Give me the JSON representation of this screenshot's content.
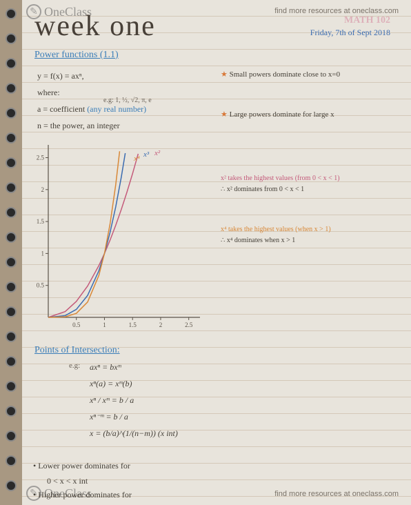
{
  "watermark": {
    "brand": "OneClass",
    "icon_glyph": "✎"
  },
  "resources_text": "find more resources at oneclass.com",
  "header": {
    "course": "MATH 102",
    "date": "Friday, 7th of Sept 2018"
  },
  "title": "week one",
  "section1": {
    "heading": "Power functions  (1.1)"
  },
  "definitions": {
    "formula": "y = f(x) = axⁿ,",
    "where": "where:",
    "coef_lhs": "a = coefficient ",
    "coef_paren": "(any real number)",
    "pow_line": "n = the power, an integer",
    "eg": "e.g: 1, ½, √2, π, e"
  },
  "notes": {
    "n1": "Small powers dominate close to x=0",
    "n2": "Large powers dominate for large x"
  },
  "chart": {
    "type": "line",
    "xlim": [
      0,
      2.7
    ],
    "ylim": [
      0,
      2.7
    ],
    "xticks": [
      0.5,
      1,
      1.5,
      2,
      2.5
    ],
    "yticks": [
      0.5,
      1,
      1.5,
      2,
      2.5
    ],
    "axis_color": "#5a5248",
    "tick_fontsize": 9,
    "series": [
      {
        "name": "x2",
        "label": "x²",
        "color": "#c45a7a",
        "width": 1.5,
        "points": [
          [
            0,
            0
          ],
          [
            0.3,
            0.09
          ],
          [
            0.5,
            0.25
          ],
          [
            0.7,
            0.49
          ],
          [
            0.9,
            0.81
          ],
          [
            1,
            1
          ],
          [
            1.1,
            1.21
          ],
          [
            1.2,
            1.44
          ],
          [
            1.3,
            1.69
          ],
          [
            1.4,
            1.96
          ],
          [
            1.5,
            2.25
          ],
          [
            1.6,
            2.56
          ]
        ]
      },
      {
        "name": "x3",
        "label": "x³",
        "color": "#3a6bb0",
        "width": 1.5,
        "points": [
          [
            0,
            0
          ],
          [
            0.3,
            0.027
          ],
          [
            0.5,
            0.125
          ],
          [
            0.7,
            0.343
          ],
          [
            0.9,
            0.729
          ],
          [
            1,
            1
          ],
          [
            1.1,
            1.331
          ],
          [
            1.2,
            1.728
          ],
          [
            1.3,
            2.197
          ],
          [
            1.37,
            2.57
          ]
        ]
      },
      {
        "name": "x4",
        "label": "x⁴",
        "color": "#d88838",
        "width": 1.5,
        "points": [
          [
            0,
            0
          ],
          [
            0.3,
            0.0081
          ],
          [
            0.5,
            0.0625
          ],
          [
            0.7,
            0.2401
          ],
          [
            0.9,
            0.6561
          ],
          [
            1,
            1
          ],
          [
            1.1,
            1.4641
          ],
          [
            1.2,
            2.0736
          ],
          [
            1.27,
            2.6
          ]
        ]
      }
    ],
    "labels": {
      "x4": "x⁴",
      "x3": "x³",
      "x2": "x²"
    }
  },
  "chart_annotations": {
    "a1": "x² takes the highest values (from 0 < x < 1)",
    "a2": "∴ x² dominates from 0 < x < 1",
    "a3": "x⁴ takes the highest values (when x > 1)",
    "a4": "∴ x⁴ dominates when x > 1"
  },
  "section2": {
    "heading": "Points of Intersection:",
    "eg": "e.g:",
    "lines": [
      "axⁿ  =  bxᵐ",
      "xⁿ(a) = xᵐ(b)",
      "xⁿ / xᵐ  =  b / a",
      "xⁿ⁻ᵐ  =  b / a",
      "x  =  (b/a)^(1/(n−m))     (x int)"
    ]
  },
  "bullets": {
    "b1": "• Lower power dominates for",
    "b1b": "0 < x < x int",
    "b2": "• Higher power dominates for"
  }
}
